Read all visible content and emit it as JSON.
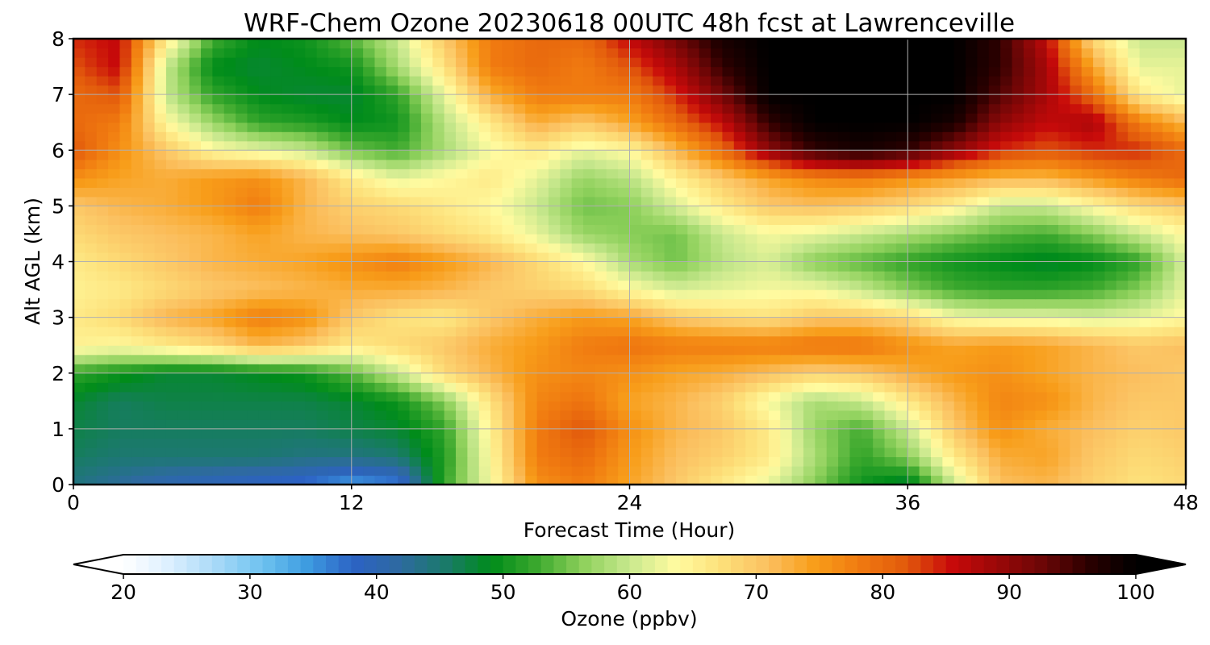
{
  "chart_data": {
    "type": "heatmap",
    "title": "WRF-Chem Ozone  20230618 00UTC 48h fcst at Lawrenceville",
    "xlabel": "Forecast Time (Hour)",
    "ylabel": "Alt AGL (km)",
    "xlim": [
      0,
      48
    ],
    "ylim": [
      0,
      8
    ],
    "xticks": [
      0,
      12,
      24,
      36,
      48
    ],
    "yticks": [
      0,
      1,
      2,
      3,
      4,
      5,
      6,
      7,
      8
    ],
    "grid": true,
    "colorbar": {
      "label": "Ozone  (ppbv)",
      "min": 20,
      "max": 100,
      "ticks": [
        20,
        30,
        40,
        50,
        60,
        70,
        80,
        90,
        100
      ],
      "extend": "both",
      "colors": [
        "#ffffff",
        "#dcefff",
        "#a9d9f7",
        "#6fc3f0",
        "#3d9be0",
        "#2c62c4",
        "#2e6aa0",
        "#1a7a6a",
        "#008c1a",
        "#3da92e",
        "#8fd15c",
        "#c8e88e",
        "#fffba0",
        "#fde07a",
        "#fbc060",
        "#f89e1a",
        "#f07a10",
        "#e25a0c",
        "#c80a0a",
        "#9a0808",
        "#6a0606",
        "#2a0000",
        "#000000"
      ]
    },
    "x": [
      0,
      2,
      4,
      6,
      8,
      10,
      12,
      14,
      16,
      18,
      20,
      22,
      24,
      26,
      28,
      30,
      32,
      34,
      36,
      38,
      40,
      42,
      44,
      46,
      48
    ],
    "y": [
      0,
      0.5,
      1,
      1.5,
      2,
      2.5,
      3,
      3.5,
      4,
      4.5,
      5,
      5.5,
      6,
      6.5,
      7,
      7.5,
      8
    ],
    "z": [
      [
        44,
        42,
        40,
        39,
        38,
        37,
        34,
        36,
        52,
        63,
        76,
        78,
        74,
        70,
        66,
        62,
        56,
        50,
        47,
        60,
        71,
        72,
        69,
        67,
        68
      ],
      [
        46,
        45,
        45,
        45,
        45,
        44,
        44,
        45,
        51,
        64,
        78,
        80,
        75,
        71,
        69,
        66,
        58,
        52,
        56,
        66,
        73,
        74,
        70,
        68,
        69
      ],
      [
        47,
        46,
        46,
        46,
        46,
        46,
        47,
        48,
        52,
        65,
        78,
        82,
        76,
        72,
        70,
        66,
        57,
        53,
        60,
        70,
        76,
        73,
        71,
        69,
        70
      ],
      [
        48,
        46,
        47,
        47,
        47,
        47,
        48,
        50,
        56,
        67,
        77,
        79,
        74,
        72,
        69,
        63,
        58,
        60,
        66,
        72,
        77,
        76,
        72,
        70,
        70
      ],
      [
        52,
        50,
        48,
        48,
        49,
        50,
        54,
        60,
        68,
        72,
        76,
        77,
        76,
        74,
        73,
        71,
        69,
        70,
        73,
        75,
        76,
        74,
        72,
        71,
        70
      ],
      [
        65,
        64,
        66,
        68,
        72,
        70,
        66,
        68,
        70,
        73,
        75,
        78,
        79,
        78,
        78,
        78,
        79,
        79,
        76,
        74,
        75,
        74,
        72,
        70,
        71
      ],
      [
        66,
        68,
        72,
        74,
        78,
        76,
        70,
        67,
        66,
        70,
        73,
        75,
        74,
        70,
        68,
        67,
        70,
        70,
        68,
        63,
        62,
        62,
        61,
        62,
        64
      ],
      [
        65,
        66,
        68,
        70,
        71,
        72,
        73,
        73,
        72,
        70,
        69,
        68,
        64,
        61,
        62,
        63,
        63,
        60,
        56,
        53,
        52,
        52,
        53,
        56,
        62
      ],
      [
        66,
        68,
        70,
        72,
        73,
        74,
        76,
        78,
        75,
        72,
        68,
        64,
        58,
        55,
        59,
        61,
        56,
        54,
        52,
        50,
        49,
        48,
        49,
        52,
        61
      ],
      [
        68,
        70,
        71,
        72,
        74,
        72,
        71,
        70,
        68,
        66,
        62,
        57,
        56,
        55,
        60,
        63,
        62,
        60,
        58,
        56,
        54,
        53,
        56,
        60,
        64
      ],
      [
        70,
        72,
        73,
        75,
        78,
        72,
        69,
        68,
        66,
        64,
        60,
        55,
        56,
        61,
        66,
        70,
        71,
        70,
        68,
        65,
        60,
        60,
        64,
        68,
        70
      ],
      [
        76,
        74,
        73,
        75,
        76,
        72,
        66,
        62,
        64,
        66,
        62,
        57,
        59,
        65,
        70,
        74,
        77,
        78,
        76,
        74,
        72,
        72,
        75,
        78,
        80
      ],
      [
        82,
        76,
        70,
        64,
        62,
        60,
        55,
        53,
        58,
        63,
        66,
        62,
        64,
        72,
        80,
        90,
        96,
        98,
        96,
        90,
        84,
        82,
        84,
        84,
        80
      ],
      [
        80,
        78,
        64,
        57,
        52,
        51,
        49,
        50,
        59,
        66,
        73,
        70,
        74,
        80,
        86,
        96,
        100,
        100,
        100,
        98,
        90,
        86,
        88,
        78,
        72
      ],
      [
        80,
        82,
        60,
        52,
        49,
        48,
        48,
        52,
        62,
        73,
        78,
        78,
        78,
        84,
        92,
        100,
        100,
        100,
        100,
        100,
        94,
        88,
        80,
        66,
        62
      ],
      [
        82,
        86,
        60,
        49,
        48,
        49,
        50,
        58,
        67,
        78,
        80,
        78,
        82,
        88,
        96,
        100,
        100,
        100,
        100,
        100,
        96,
        88,
        74,
        62,
        62
      ],
      [
        84,
        86,
        66,
        53,
        49,
        50,
        54,
        60,
        70,
        78,
        80,
        80,
        86,
        92,
        98,
        100,
        100,
        100,
        100,
        100,
        96,
        86,
        68,
        60,
        60
      ]
    ]
  }
}
